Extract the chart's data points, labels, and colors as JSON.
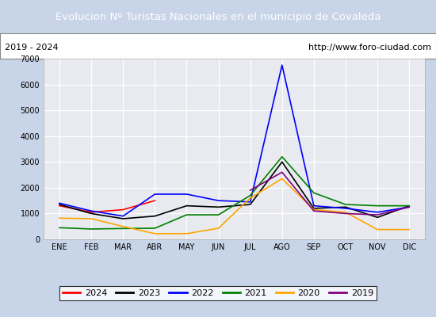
{
  "title": "Evolucion Nº Turistas Nacionales en el municipio de Covaleda",
  "subtitle_left": "2019 - 2024",
  "subtitle_right": "http://www.foro-ciudad.com",
  "x_labels": [
    "ENE",
    "FEB",
    "MAR",
    "ABR",
    "MAY",
    "JUN",
    "JUL",
    "AGO",
    "SEP",
    "OCT",
    "NOV",
    "DIC"
  ],
  "ylim": [
    0,
    7000
  ],
  "yticks": [
    0,
    1000,
    2000,
    3000,
    4000,
    5000,
    6000,
    7000
  ],
  "series": {
    "2024": {
      "color": "red",
      "data": [
        1300,
        1050,
        1150,
        1500,
        null,
        null,
        null,
        null,
        null,
        null,
        null,
        null
      ]
    },
    "2023": {
      "color": "black",
      "data": [
        1350,
        1000,
        800,
        900,
        1300,
        1250,
        1350,
        3000,
        1200,
        1250,
        850,
        1300
      ]
    },
    "2022": {
      "color": "blue",
      "data": [
        1400,
        1100,
        900,
        1750,
        1750,
        1500,
        1450,
        6750,
        1300,
        1200,
        1050,
        1250
      ]
    },
    "2021": {
      "color": "green",
      "data": [
        450,
        400,
        420,
        430,
        950,
        950,
        1700,
        3200,
        1800,
        1350,
        1300,
        1300
      ]
    },
    "2020": {
      "color": "orange",
      "data": [
        820,
        800,
        500,
        220,
        220,
        430,
        1600,
        2350,
        1150,
        1050,
        380,
        380
      ]
    },
    "2019": {
      "color": "purple",
      "data": [
        null,
        null,
        null,
        null,
        null,
        null,
        1900,
        2600,
        1100,
        1000,
        950,
        1250
      ]
    }
  },
  "title_bg_color": "#4a8fd4",
  "title_text_color": "white",
  "plot_bg_color": "#e8eaf0",
  "fig_bg_color": "#c8d4e8",
  "grid_color": "white",
  "border_color": "#6699cc"
}
